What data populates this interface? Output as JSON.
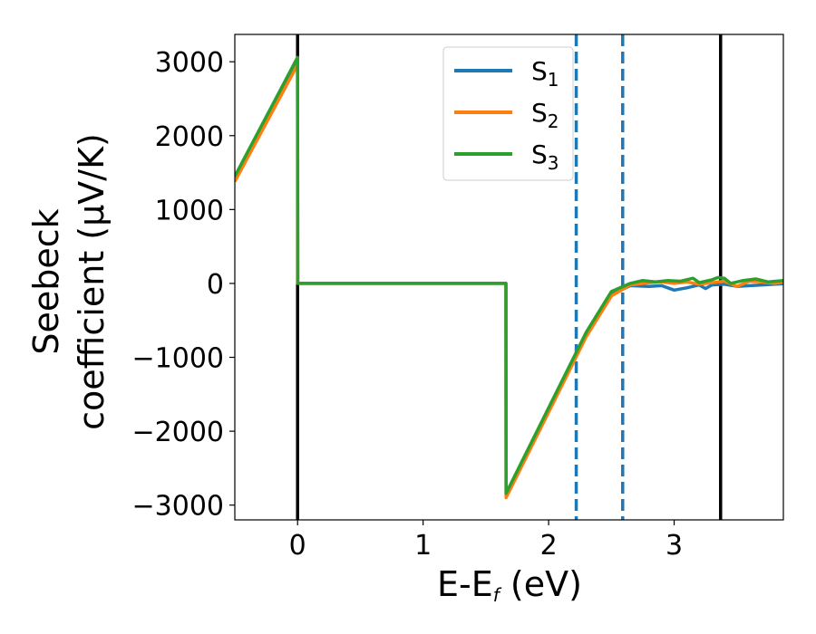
{
  "chart_data": {
    "type": "line",
    "xlabel": {
      "main": "E-E",
      "sub": "f",
      "unit": " (eV)"
    },
    "ylabel": {
      "line1": "Seebeck",
      "line2": "coefficient  (μV/K)"
    },
    "xlim": [
      -0.5,
      3.87
    ],
    "ylim": [
      -3200,
      3370
    ],
    "xticks": [
      0,
      1,
      2,
      3
    ],
    "xtick_labels": [
      "0",
      "1",
      "2",
      "3"
    ],
    "yticks": [
      3000,
      2000,
      1000,
      0,
      -1000,
      -2000,
      -3000
    ],
    "ytick_labels": [
      "3000",
      "2000",
      "1000",
      "0",
      "−1000",
      "−2000",
      "−3000"
    ],
    "vlines": [
      {
        "x": 0.0,
        "style": "solid",
        "color": "#000000"
      },
      {
        "x": 3.37,
        "style": "solid",
        "color": "#000000"
      },
      {
        "x": 2.22,
        "style": "dashed",
        "color": "#1f77b4"
      },
      {
        "x": 2.59,
        "style": "dashed",
        "color": "#1f77b4"
      }
    ],
    "legend": {
      "placement": "upper-center",
      "entries": [
        {
          "base": "S",
          "sub": "1",
          "color": "#1f77b4"
        },
        {
          "base": "S",
          "sub": "2",
          "color": "#ff7f0e"
        },
        {
          "base": "S",
          "sub": "3",
          "color": "#2ca02c"
        }
      ]
    },
    "series": [
      {
        "color": "#1f77b4",
        "points": [
          [
            -0.5,
            1400
          ],
          [
            0.0,
            2980
          ],
          [
            0.001,
            0
          ],
          [
            1.66,
            0
          ],
          [
            1.661,
            -2880
          ],
          [
            2.3,
            -700
          ],
          [
            2.5,
            -150
          ],
          [
            2.65,
            -30
          ],
          [
            2.8,
            -40
          ],
          [
            2.9,
            -30
          ],
          [
            3.0,
            -90
          ],
          [
            3.1,
            -60
          ],
          [
            3.2,
            -20
          ],
          [
            3.25,
            -70
          ],
          [
            3.3,
            -20
          ],
          [
            3.4,
            -10
          ],
          [
            3.5,
            -40
          ],
          [
            3.6,
            -30
          ],
          [
            3.7,
            -20
          ],
          [
            3.87,
            -5
          ]
        ]
      },
      {
        "color": "#ff7f0e",
        "points": [
          [
            -0.5,
            1380
          ],
          [
            0.0,
            2960
          ],
          [
            0.001,
            0
          ],
          [
            1.66,
            0
          ],
          [
            1.661,
            -2900
          ],
          [
            2.3,
            -720
          ],
          [
            2.5,
            -170
          ],
          [
            2.65,
            -20
          ],
          [
            2.8,
            10
          ],
          [
            2.9,
            20
          ],
          [
            3.0,
            0
          ],
          [
            3.1,
            20
          ],
          [
            3.2,
            -10
          ],
          [
            3.3,
            10
          ],
          [
            3.4,
            30
          ],
          [
            3.5,
            -40
          ],
          [
            3.6,
            30
          ],
          [
            3.7,
            20
          ],
          [
            3.8,
            0
          ],
          [
            3.87,
            20
          ]
        ]
      },
      {
        "color": "#2ca02c",
        "points": [
          [
            -0.5,
            1450
          ],
          [
            0.0,
            3060
          ],
          [
            0.001,
            0
          ],
          [
            1.66,
            0
          ],
          [
            1.661,
            -2840
          ],
          [
            2.3,
            -660
          ],
          [
            2.5,
            -110
          ],
          [
            2.65,
            0
          ],
          [
            2.75,
            40
          ],
          [
            2.85,
            20
          ],
          [
            2.95,
            40
          ],
          [
            3.05,
            30
          ],
          [
            3.15,
            70
          ],
          [
            3.2,
            10
          ],
          [
            3.3,
            50
          ],
          [
            3.35,
            80
          ],
          [
            3.4,
            70
          ],
          [
            3.45,
            0
          ],
          [
            3.55,
            40
          ],
          [
            3.65,
            60
          ],
          [
            3.75,
            20
          ],
          [
            3.87,
            40
          ]
        ]
      }
    ]
  }
}
